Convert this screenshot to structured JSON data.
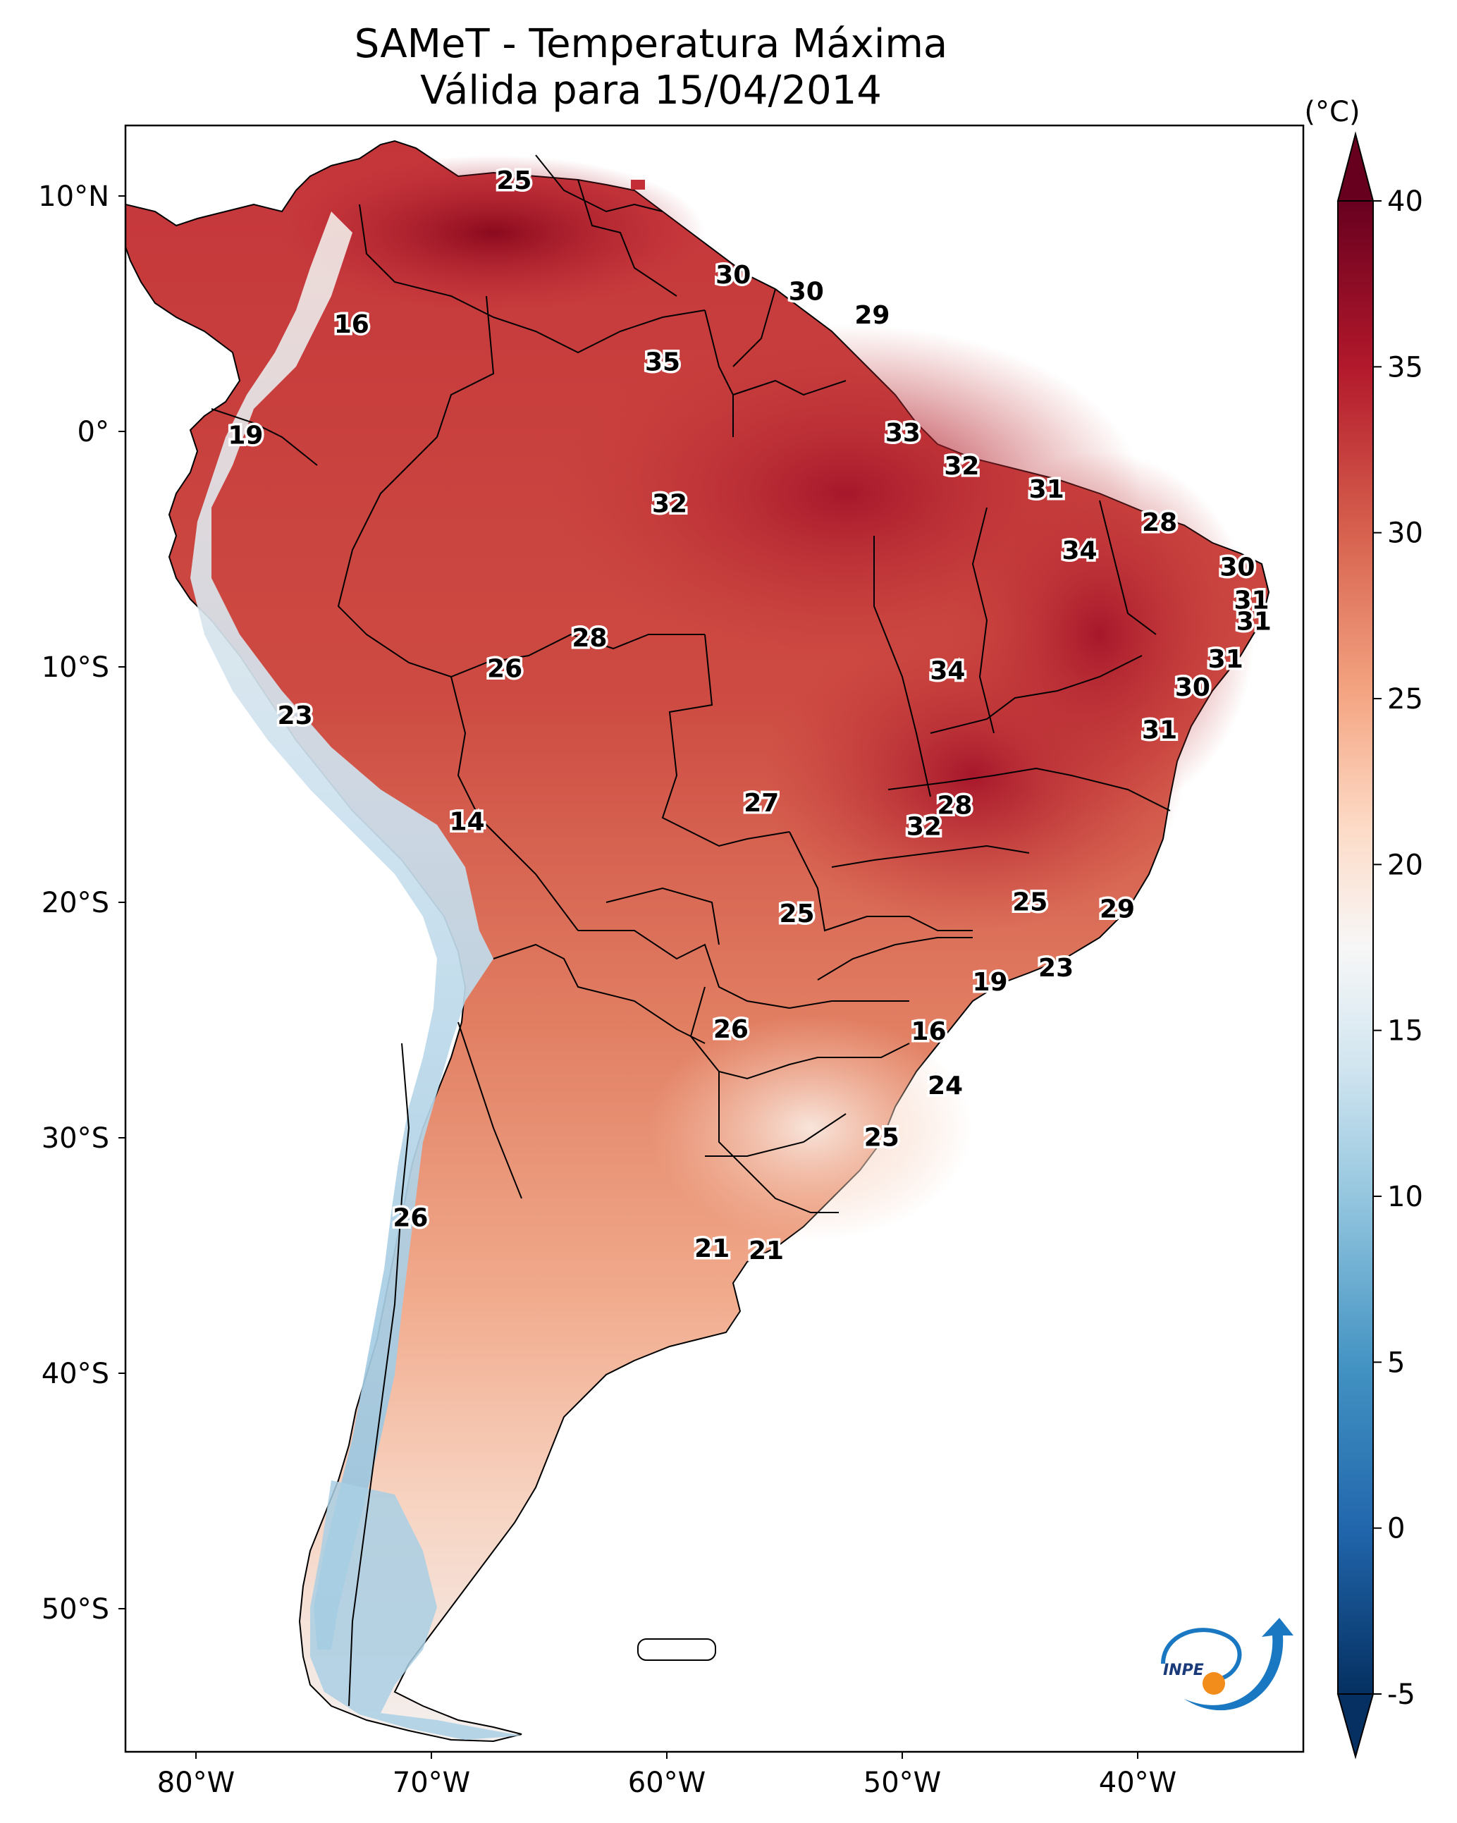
{
  "title_line1": "SAMeT - Temperatura Máxima",
  "title_line2": "Válida para 15/04/2014",
  "colorbar": {
    "unit": "(°C)",
    "ticks": [
      40,
      35,
      30,
      25,
      20,
      15,
      10,
      5,
      0,
      -5
    ],
    "tick_labels": [
      "40",
      "35",
      "30",
      "25",
      "20",
      "15",
      "10",
      "5",
      "0",
      "-5"
    ],
    "min": -5,
    "max": 40,
    "extend": "both",
    "colormap": "RdBu_r",
    "colors": [
      "#053061",
      "#2166ac",
      "#4393c3",
      "#92c5de",
      "#d1e5f0",
      "#f7f7f7",
      "#fddbc7",
      "#f4a582",
      "#d6604d",
      "#b2182b",
      "#67001f"
    ]
  },
  "axes": {
    "lon_labels": [
      "80°W",
      "70°W",
      "60°W",
      "50°W",
      "40°W"
    ],
    "lon_values": [
      -80,
      -70,
      -60,
      -50,
      -40
    ],
    "lat_labels": [
      "10°N",
      "0°",
      "10°S",
      "20°S",
      "30°S",
      "40°S",
      "50°S"
    ],
    "lat_values": [
      10,
      0,
      -10,
      -20,
      -30,
      -40,
      -50
    ],
    "lon_range": [
      -83,
      -33
    ],
    "lat_range": [
      -56,
      13
    ]
  },
  "logo": {
    "text": "INPE",
    "colors": [
      "#1a78c2",
      "#f28c1a"
    ]
  },
  "point_values": [
    {
      "value": "25",
      "lon": -66.5,
      "lat": 10.6
    },
    {
      "value": "16",
      "lon": -73.4,
      "lat": 4.5
    },
    {
      "value": "30",
      "lon": -57.2,
      "lat": 6.6
    },
    {
      "value": "30",
      "lon": -54.1,
      "lat": 5.9
    },
    {
      "value": "29",
      "lon": -51.3,
      "lat": 4.9
    },
    {
      "value": "35",
      "lon": -60.2,
      "lat": 2.9
    },
    {
      "value": "19",
      "lon": -77.9,
      "lat": -0.2
    },
    {
      "value": "33",
      "lon": -50.0,
      "lat": -0.1
    },
    {
      "value": "32",
      "lon": -47.5,
      "lat": -1.5
    },
    {
      "value": "31",
      "lon": -43.9,
      "lat": -2.5
    },
    {
      "value": "32",
      "lon": -59.9,
      "lat": -3.1
    },
    {
      "value": "28",
      "lon": -39.1,
      "lat": -3.9
    },
    {
      "value": "34",
      "lon": -42.5,
      "lat": -5.1
    },
    {
      "value": "30",
      "lon": -35.8,
      "lat": -5.8
    },
    {
      "value": "31",
      "lon": -35.2,
      "lat": -7.2
    },
    {
      "value": "31",
      "lon": -35.1,
      "lat": -8.1
    },
    {
      "value": "28",
      "lon": -63.3,
      "lat": -8.8
    },
    {
      "value": "26",
      "lon": -66.9,
      "lat": -10.1
    },
    {
      "value": "34",
      "lon": -48.1,
      "lat": -10.2
    },
    {
      "value": "31",
      "lon": -36.3,
      "lat": -9.7
    },
    {
      "value": "30",
      "lon": -37.7,
      "lat": -10.9
    },
    {
      "value": "23",
      "lon": -75.8,
      "lat": -12.1
    },
    {
      "value": "31",
      "lon": -39.1,
      "lat": -12.7
    },
    {
      "value": "27",
      "lon": -56.0,
      "lat": -15.8
    },
    {
      "value": "28",
      "lon": -47.8,
      "lat": -15.9
    },
    {
      "value": "32",
      "lon": -49.1,
      "lat": -16.8
    },
    {
      "value": "14",
      "lon": -68.5,
      "lat": -16.6
    },
    {
      "value": "25",
      "lon": -44.6,
      "lat": -20.0
    },
    {
      "value": "25",
      "lon": -54.5,
      "lat": -20.5
    },
    {
      "value": "29",
      "lon": -40.9,
      "lat": -20.3
    },
    {
      "value": "23",
      "lon": -43.5,
      "lat": -22.8
    },
    {
      "value": "19",
      "lon": -46.3,
      "lat": -23.4
    },
    {
      "value": "26",
      "lon": -57.3,
      "lat": -25.4
    },
    {
      "value": "16",
      "lon": -48.9,
      "lat": -25.5
    },
    {
      "value": "24",
      "lon": -48.2,
      "lat": -27.8
    },
    {
      "value": "25",
      "lon": -50.9,
      "lat": -30.0
    },
    {
      "value": "26",
      "lon": -70.9,
      "lat": -33.4
    },
    {
      "value": "21",
      "lon": -58.1,
      "lat": -34.7
    },
    {
      "value": "21",
      "lon": -55.8,
      "lat": -34.8
    }
  ]
}
